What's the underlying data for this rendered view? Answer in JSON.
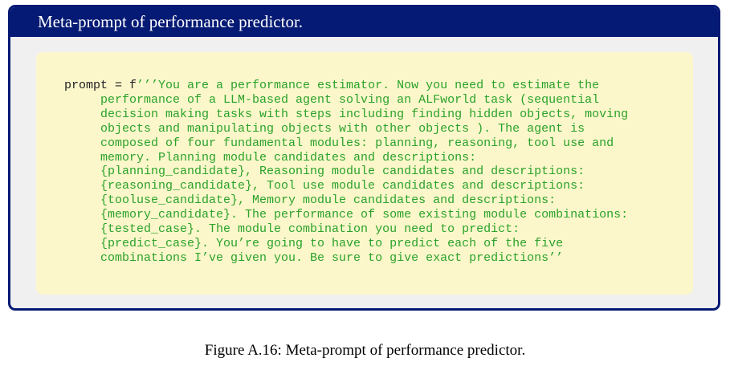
{
  "box": {
    "title": "Meta-prompt of performance predictor."
  },
  "code": {
    "prefix": "prompt = f",
    "lines": [
      "’’’You are a performance estimator. Now you need to estimate the",
      "     performance of a LLM-based agent solving an ALFworld task (sequential",
      "     decision making tasks with steps including finding hidden objects, moving",
      "     objects and manipulating objects with other objects ). The agent is",
      "     composed of four fundamental modules: planning, reasoning, tool use and",
      "     memory. Planning module candidates and descriptions:",
      "     {planning_candidate}, Reasoning module candidates and descriptions:",
      "     {reasoning_candidate}, Tool use module candidates and descriptions:",
      "     {tooluse_candidate}, Memory module candidates and descriptions:",
      "     {memory_candidate}. The performance of some existing module combinations:",
      "     {tested_case}. The module combination you need to predict:",
      "     {predict_case}. You’re going to have to predict each of the five",
      "     combinations I’ve given you. Be sure to give exact predictions’’"
    ]
  },
  "caption": "Figure A.16: Meta-prompt of performance predictor.",
  "colors": {
    "frame": "#051a74",
    "code_background": "#fcf7cb",
    "string_text": "#2aa22a"
  }
}
